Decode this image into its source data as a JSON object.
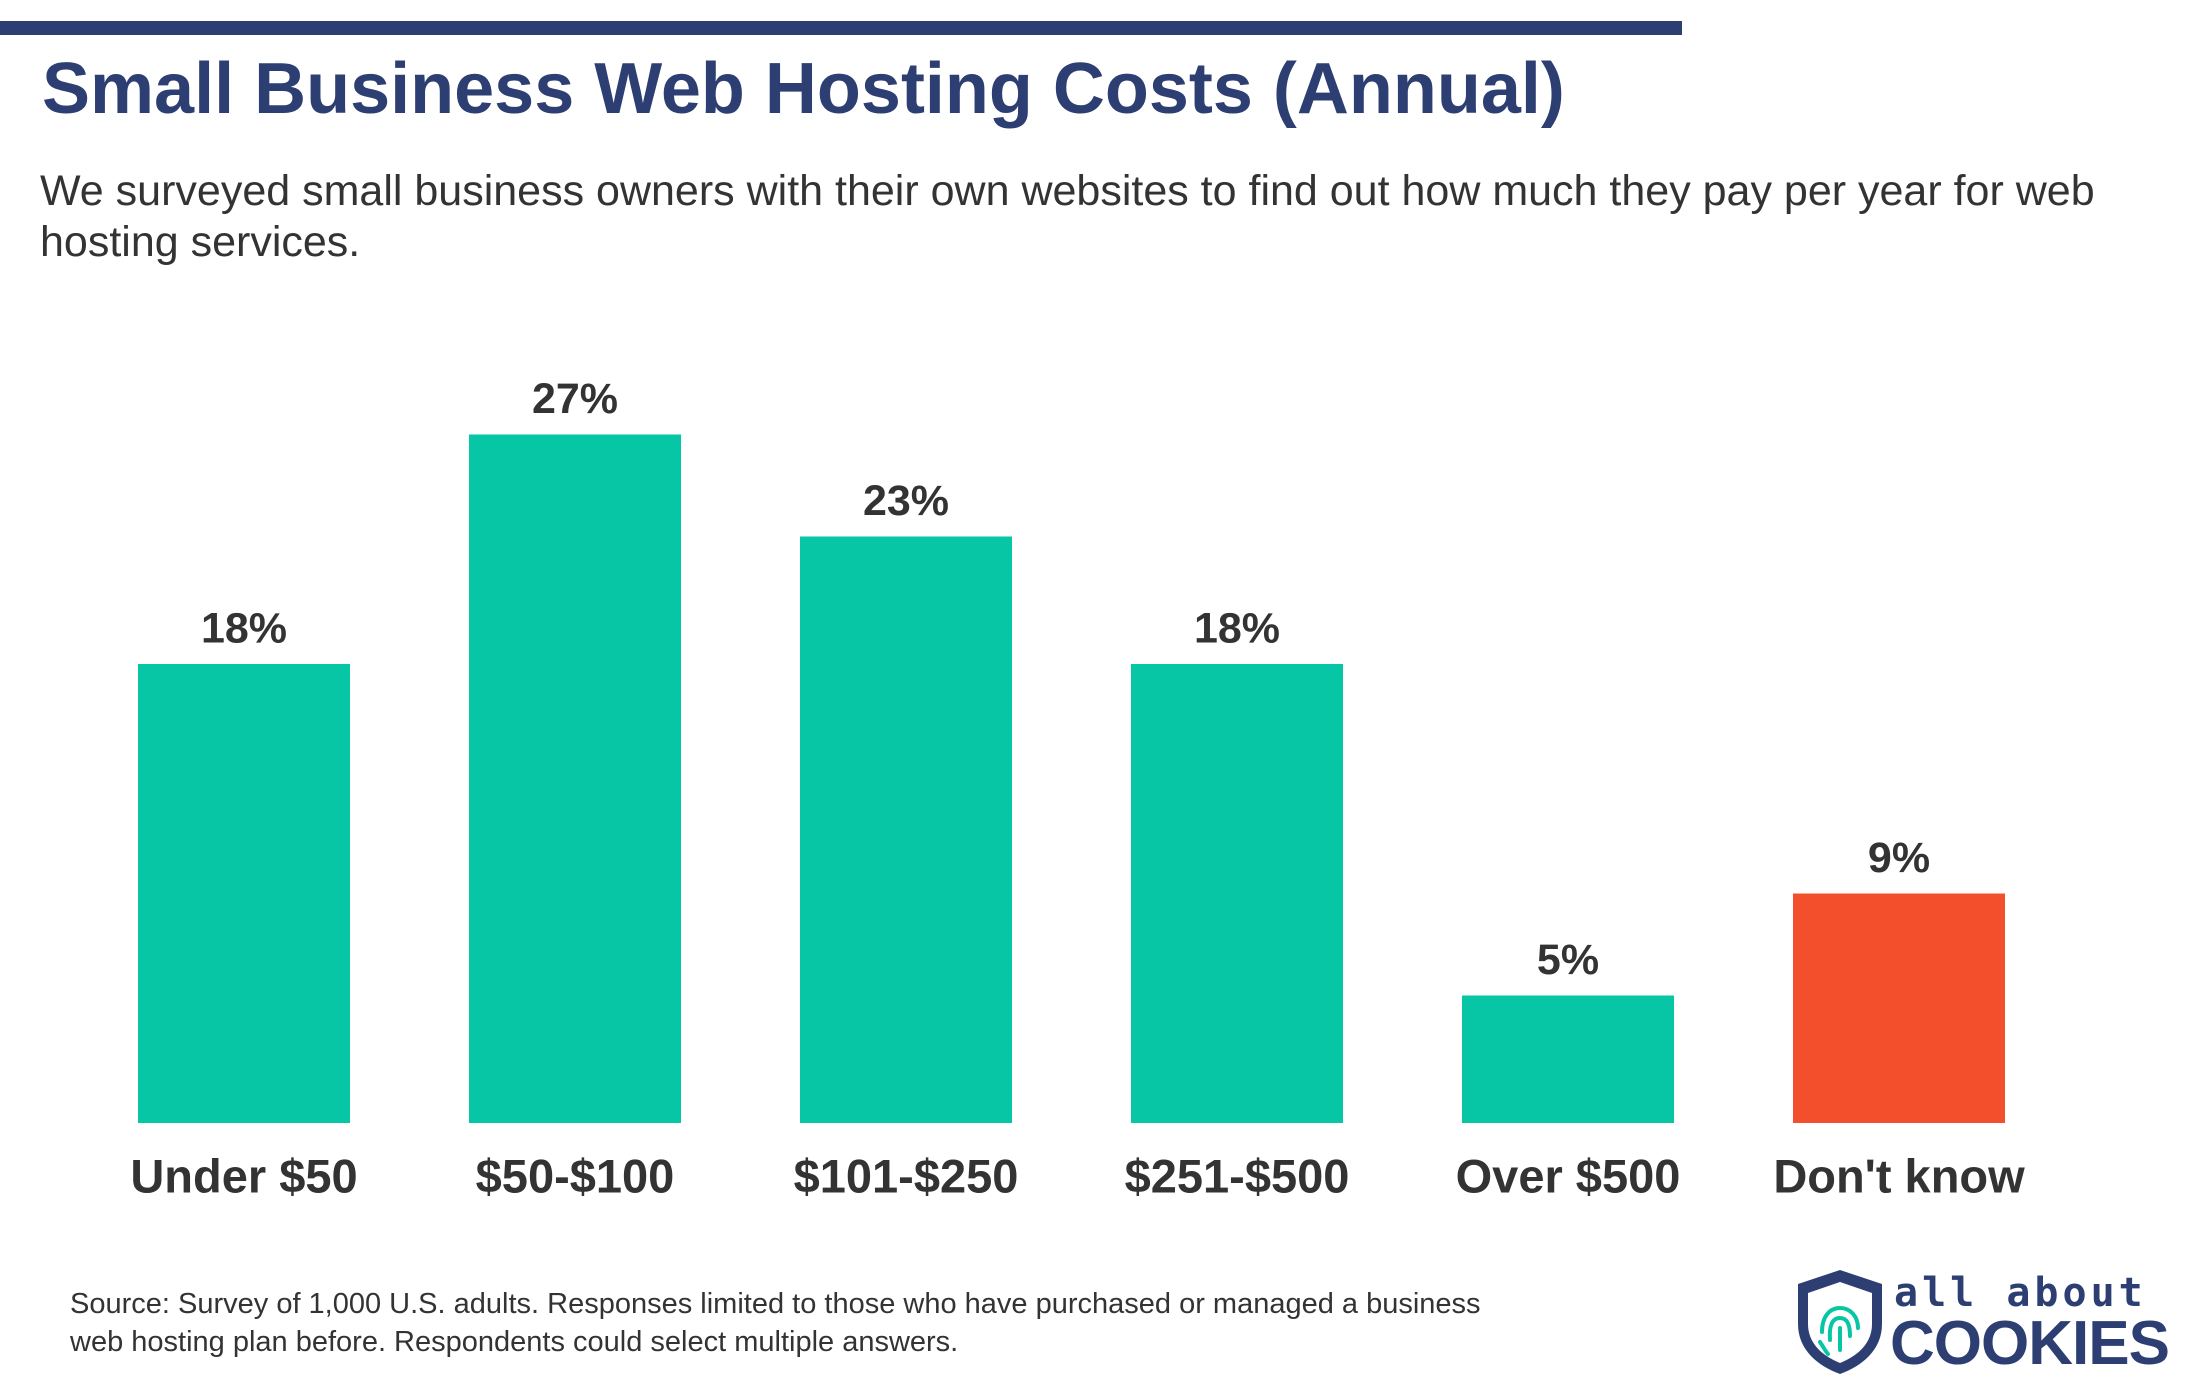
{
  "chart_data": {
    "type": "bar",
    "title": "Small Business Web Hosting Costs (Annual)",
    "subtitle": "We surveyed small business owners with their own websites to find out how much they pay per year for web hosting services.",
    "categories": [
      "Under $50",
      "$50-$100",
      "$101-$250",
      "$251-$500",
      "Over $500",
      "Don't know"
    ],
    "values": [
      18,
      27,
      23,
      18,
      5,
      9
    ],
    "value_labels": [
      "18%",
      "27%",
      "23%",
      "18%",
      "5%",
      "9%"
    ],
    "colors": [
      "#06c6a6",
      "#06c6a6",
      "#06c6a6",
      "#06c6a6",
      "#06c6a6",
      "#f44f2c"
    ],
    "source": "Source: Survey of 1,000 U.S. adults. Responses limited to those who have purchased or managed a business web hosting plan before. Respondents could select multiple answers."
  },
  "logo": {
    "top": "all about",
    "bottom": "COOKIES"
  }
}
